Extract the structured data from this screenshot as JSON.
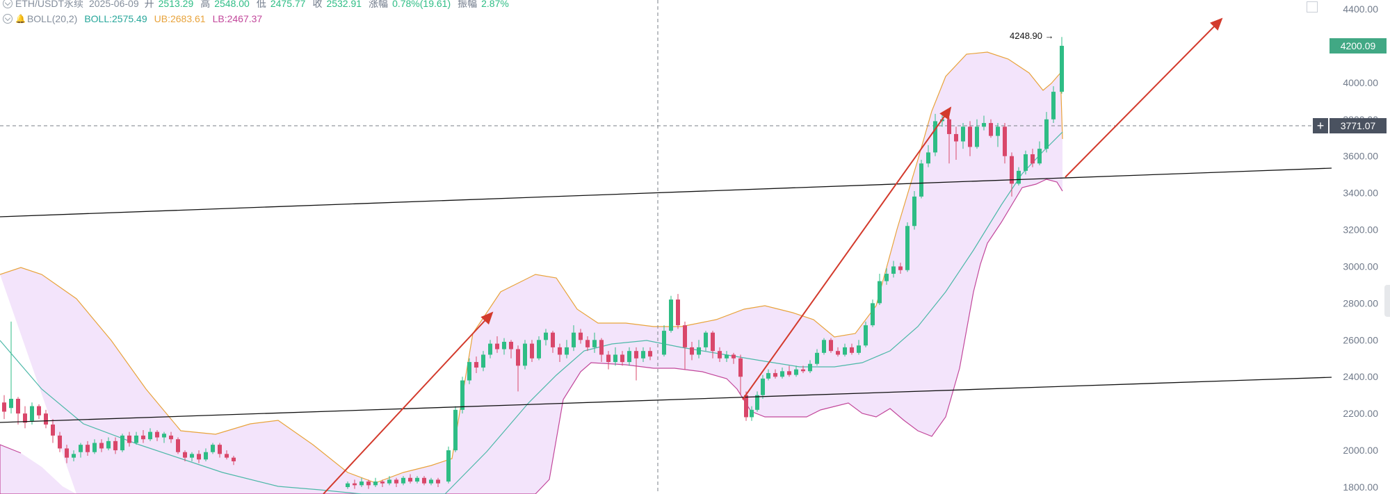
{
  "header": {
    "symbol": "ETH/USDT永续",
    "date": "2025-06-09",
    "open_label": "开",
    "open": "2513.29",
    "high_label": "高",
    "high": "2548.00",
    "low_label": "低",
    "low": "2475.77",
    "close_label": "收",
    "close": "2532.91",
    "change_label": "涨幅",
    "change": "0.78%(19.61)",
    "amplitude_label": "振幅",
    "amplitude": "2.87%"
  },
  "indicator": {
    "name": "BOLL(20,2)",
    "mid": "BOLL:2575.49",
    "upper": "UB:2683.61",
    "lower": "LB:2467.37"
  },
  "price_axis": {
    "ticks": [
      "4400.00",
      "4200.00",
      "4000.00",
      "3800.00",
      "3600.00",
      "3400.00",
      "3200.00",
      "3000.00",
      "2800.00",
      "2600.00",
      "2400.00",
      "2200.00",
      "2000.00",
      "1800.00"
    ]
  },
  "last_price": "4200.09",
  "crosshair_price": "3771.07",
  "crosshair_plus": "+",
  "max_marker": "4248.90 →",
  "colors": {
    "up": "#2ebd85",
    "down": "#d9476a",
    "band_fill": "#f3e4fb",
    "upper_band": "#e8a33b",
    "middle_band": "#4cb8a8",
    "lower_band": "#c2479b",
    "trend_arrow": "#d33a2c",
    "trendline": "#111111"
  },
  "icons": {
    "toggle": "chevron-circle-icon",
    "alert": "bell-icon",
    "corner": "layout-corner-icon"
  }
}
